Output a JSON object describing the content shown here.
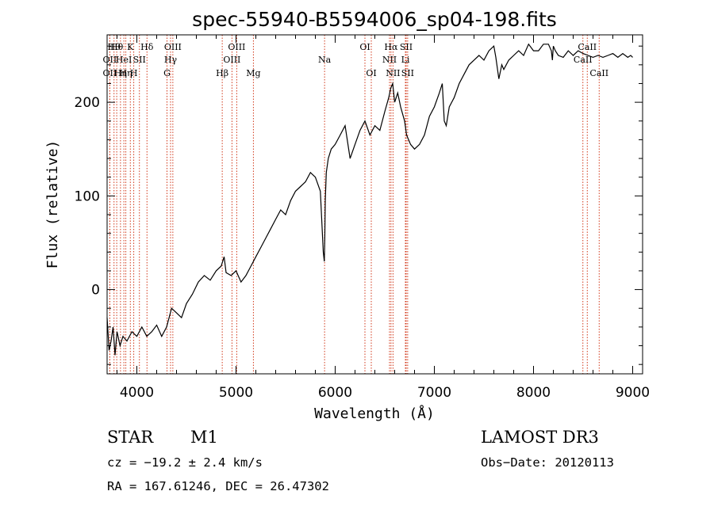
{
  "chart_data": {
    "type": "line",
    "title": "spec-55940-B5594006_sp04-198.fits",
    "xlabel": "Wavelength (Å)",
    "ylabel": "Flux (relative)",
    "xlim": [
      3700,
      9100
    ],
    "ylim": [
      -90,
      272
    ],
    "xticks": [
      4000,
      5000,
      6000,
      7000,
      8000,
      9000
    ],
    "yticks": [
      0,
      100,
      200
    ],
    "series": [
      {
        "name": "spectrum",
        "x": [
          3700,
          3720,
          3740,
          3760,
          3780,
          3800,
          3830,
          3860,
          3900,
          3950,
          4000,
          4050,
          4100,
          4150,
          4200,
          4250,
          4300,
          4350,
          4400,
          4450,
          4500,
          4560,
          4620,
          4680,
          4740,
          4800,
          4850,
          4880,
          4900,
          4950,
          5000,
          5050,
          5100,
          5150,
          5200,
          5250,
          5300,
          5350,
          5400,
          5450,
          5500,
          5550,
          5600,
          5650,
          5700,
          5750,
          5800,
          5850,
          5880,
          5890,
          5895,
          5900,
          5910,
          5930,
          5960,
          6000,
          6050,
          6100,
          6150,
          6200,
          6250,
          6300,
          6350,
          6400,
          6450,
          6500,
          6540,
          6560,
          6580,
          6600,
          6630,
          6660,
          6700,
          6720,
          6760,
          6800,
          6850,
          6900,
          6950,
          7000,
          7050,
          7080,
          7100,
          7120,
          7150,
          7200,
          7250,
          7300,
          7350,
          7400,
          7450,
          7500,
          7550,
          7600,
          7620,
          7650,
          7680,
          7700,
          7750,
          7800,
          7850,
          7900,
          7950,
          8000,
          8050,
          8100,
          8150,
          8180,
          8190,
          8200,
          8220,
          8250,
          8300,
          8350,
          8400,
          8450,
          8500,
          8550,
          8600,
          8650,
          8700,
          8750,
          8800,
          8850,
          8900,
          8950,
          8980,
          9000
        ],
        "values": [
          -30,
          -65,
          -55,
          -40,
          -70,
          -45,
          -60,
          -50,
          -55,
          -45,
          -50,
          -40,
          -50,
          -45,
          -38,
          -50,
          -40,
          -20,
          -25,
          -30,
          -15,
          -5,
          8,
          15,
          10,
          20,
          25,
          35,
          18,
          15,
          20,
          8,
          15,
          25,
          35,
          45,
          55,
          65,
          75,
          85,
          80,
          95,
          105,
          110,
          115,
          125,
          120,
          105,
          40,
          30,
          55,
          95,
          125,
          140,
          150,
          155,
          165,
          175,
          140,
          155,
          170,
          180,
          165,
          175,
          170,
          190,
          205,
          215,
          220,
          200,
          210,
          195,
          180,
          165,
          155,
          150,
          155,
          165,
          185,
          195,
          210,
          220,
          180,
          175,
          195,
          205,
          220,
          230,
          240,
          245,
          250,
          245,
          255,
          260,
          248,
          225,
          240,
          235,
          245,
          250,
          255,
          250,
          262,
          255,
          255,
          262,
          262,
          255,
          245,
          260,
          255,
          250,
          248,
          255,
          250,
          255,
          252,
          250,
          248,
          250,
          248,
          250,
          252,
          248,
          252,
          248,
          250,
          248
        ]
      }
    ],
    "line_markers": [
      {
        "wave": 3727,
        "label": "OII",
        "row": 2
      },
      {
        "wave": 3727,
        "label": "OII",
        "row": 3
      },
      {
        "wave": 3770,
        "label": "Hθ",
        "row": 1
      },
      {
        "wave": 3797,
        "label": "Hθ",
        "row": 1
      },
      {
        "wave": 3835,
        "label": "Hη",
        "row": 3
      },
      {
        "wave": 3869,
        "label": "HeI",
        "row": 2
      },
      {
        "wave": 3889,
        "label": "Hη",
        "row": 3
      },
      {
        "wave": 3934,
        "label": "K",
        "row": 1
      },
      {
        "wave": 3969,
        "label": "H",
        "row": 3
      },
      {
        "wave": 4026,
        "label": "SII",
        "row": 2
      },
      {
        "wave": 4102,
        "label": "Hδ",
        "row": 1
      },
      {
        "wave": 4304,
        "label": "G",
        "row": 3
      },
      {
        "wave": 4340,
        "label": "Hγ",
        "row": 2
      },
      {
        "wave": 4363,
        "label": "OIII",
        "row": 1
      },
      {
        "wave": 4861,
        "label": "Hβ",
        "row": 3
      },
      {
        "wave": 4959,
        "label": "OIII",
        "row": 2
      },
      {
        "wave": 5007,
        "label": "OIII",
        "row": 1
      },
      {
        "wave": 5175,
        "label": "Mg",
        "row": 3
      },
      {
        "wave": 5893,
        "label": "Na",
        "row": 2
      },
      {
        "wave": 6300,
        "label": "OI",
        "row": 1
      },
      {
        "wave": 6364,
        "label": "OI",
        "row": 3
      },
      {
        "wave": 6548,
        "label": "NII",
        "row": 2
      },
      {
        "wave": 6563,
        "label": "Hα",
        "row": 1
      },
      {
        "wave": 6583,
        "label": "NII",
        "row": 3
      },
      {
        "wave": 6708,
        "label": "Li",
        "row": 2
      },
      {
        "wave": 6716,
        "label": "SII",
        "row": 1
      },
      {
        "wave": 6731,
        "label": "SII",
        "row": 3
      },
      {
        "wave": 8498,
        "label": "CaII",
        "row": 2
      },
      {
        "wave": 8542,
        "label": "CaII",
        "row": 1
      },
      {
        "wave": 8662,
        "label": "CaII",
        "row": 3
      }
    ],
    "marker_color": "#cc2200"
  },
  "info": {
    "object_class": "STAR",
    "subclass": "M1",
    "survey": "LAMOST DR3",
    "cz": "cz = −19.2 ± 2.4 km/s",
    "obs_date": "Obs−Date: 20120113",
    "coords": "RA = 167.61246, DEC =  26.47302"
  }
}
